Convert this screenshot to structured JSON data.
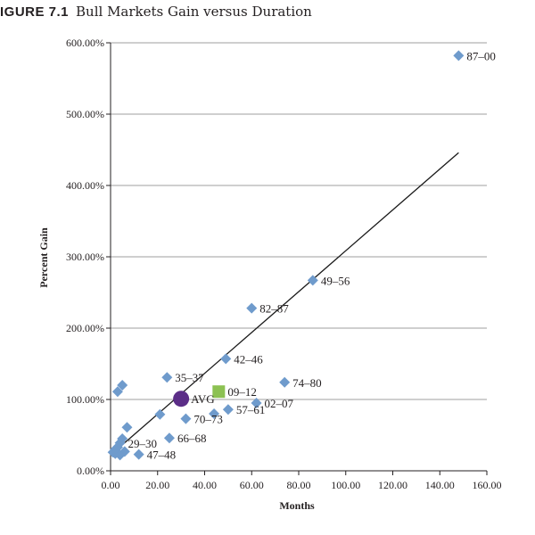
{
  "figure": {
    "number": "IGURE 7.1",
    "title": "Bull Markets Gain versus Duration"
  },
  "chart_data": {
    "type": "scatter",
    "title": "Bull Markets Gain versus Duration",
    "xlabel": "Months",
    "ylabel": "Percent Gain",
    "xlim": [
      0,
      160
    ],
    "ylim": [
      0,
      600
    ],
    "x_ticks": [
      0,
      20,
      40,
      60,
      80,
      100,
      120,
      140,
      160
    ],
    "x_tick_labels": [
      "0.00",
      "20.00",
      "40.00",
      "60.00",
      "80.00",
      "100.00",
      "120.00",
      "140.00",
      "160.00"
    ],
    "y_ticks": [
      0,
      100,
      200,
      300,
      400,
      500,
      600
    ],
    "y_tick_labels": [
      "0.00%",
      "100.00%",
      "200.00%",
      "300.00%",
      "400.00%",
      "500.00%",
      "600.00%"
    ],
    "grid": "horizontal",
    "colors": {
      "points": "#6f9bcc",
      "current": "#8cc152",
      "average": "#5b2d87",
      "trendline": "#1a1a1a",
      "gridline": "#7f7f7f"
    },
    "trendline": {
      "x": [
        0,
        148
      ],
      "y": [
        22,
        446
      ]
    },
    "series": [
      {
        "marker": "diamond",
        "points": [
          {
            "x": 148,
            "y": 582,
            "label": "87–00"
          },
          {
            "x": 86,
            "y": 267,
            "label": "49–56"
          },
          {
            "x": 60,
            "y": 228,
            "label": "82–87"
          },
          {
            "x": 49,
            "y": 157,
            "label": "42–46"
          },
          {
            "x": 74,
            "y": 124,
            "label": "74–80"
          },
          {
            "x": 24,
            "y": 131,
            "label": "35–37"
          },
          {
            "x": 62,
            "y": 95,
            "label": "02–07"
          },
          {
            "x": 50,
            "y": 86,
            "label": "57–61"
          },
          {
            "x": 44,
            "y": 80,
            "label": ""
          },
          {
            "x": 32,
            "y": 73,
            "label": "70–73"
          },
          {
            "x": 25,
            "y": 46,
            "label": "66–68"
          },
          {
            "x": 12,
            "y": 23,
            "label": "47–48"
          },
          {
            "x": 5,
            "y": 120,
            "label": ""
          },
          {
            "x": 3,
            "y": 111,
            "label": ""
          },
          {
            "x": 21,
            "y": 79,
            "label": ""
          },
          {
            "x": 7,
            "y": 61,
            "label": ""
          },
          {
            "x": 5,
            "y": 45,
            "label": ""
          },
          {
            "x": 4,
            "y": 39,
            "label": "29–30"
          },
          {
            "x": 3,
            "y": 33,
            "label": ""
          },
          {
            "x": 2,
            "y": 30,
            "label": ""
          },
          {
            "x": 6,
            "y": 27,
            "label": ""
          },
          {
            "x": 1,
            "y": 26,
            "label": ""
          },
          {
            "x": 2,
            "y": 24,
            "label": ""
          },
          {
            "x": 4,
            "y": 22,
            "label": ""
          }
        ]
      },
      {
        "marker": "square",
        "points": [
          {
            "x": 46,
            "y": 111,
            "label": "09–12"
          }
        ]
      },
      {
        "marker": "circle",
        "points": [
          {
            "x": 30,
            "y": 101,
            "label": "AVG"
          }
        ]
      }
    ]
  }
}
